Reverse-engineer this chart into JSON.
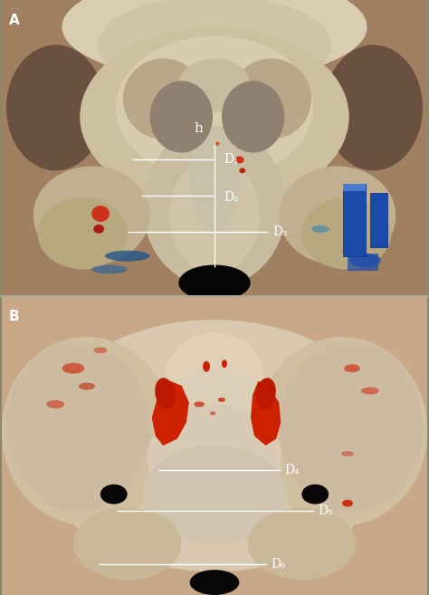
{
  "fig_width": 4.74,
  "fig_height": 6.57,
  "dpi": 100,
  "label_color": "white",
  "line_color": "white",
  "annotation_h": "h",
  "annotation_D1": "D₁",
  "annotation_D2": "D₂",
  "annotation_D3": "D₃",
  "annotation_D4": "D₄",
  "annotation_D5": "D₅",
  "annotation_D6": "D₆",
  "font_size_labels": 9,
  "font_size_panel": 11,
  "panelA_split": 0.502,
  "bg_color": "#c0a080",
  "bone_light": "#ddd0b8",
  "bone_mid": "#c8b898",
  "bone_dark": "#a08060",
  "bone_shadow": "#705030",
  "red_vessel": "#cc2200",
  "blue_obj": "#1a4aaa",
  "black_hole": "#0a0808"
}
